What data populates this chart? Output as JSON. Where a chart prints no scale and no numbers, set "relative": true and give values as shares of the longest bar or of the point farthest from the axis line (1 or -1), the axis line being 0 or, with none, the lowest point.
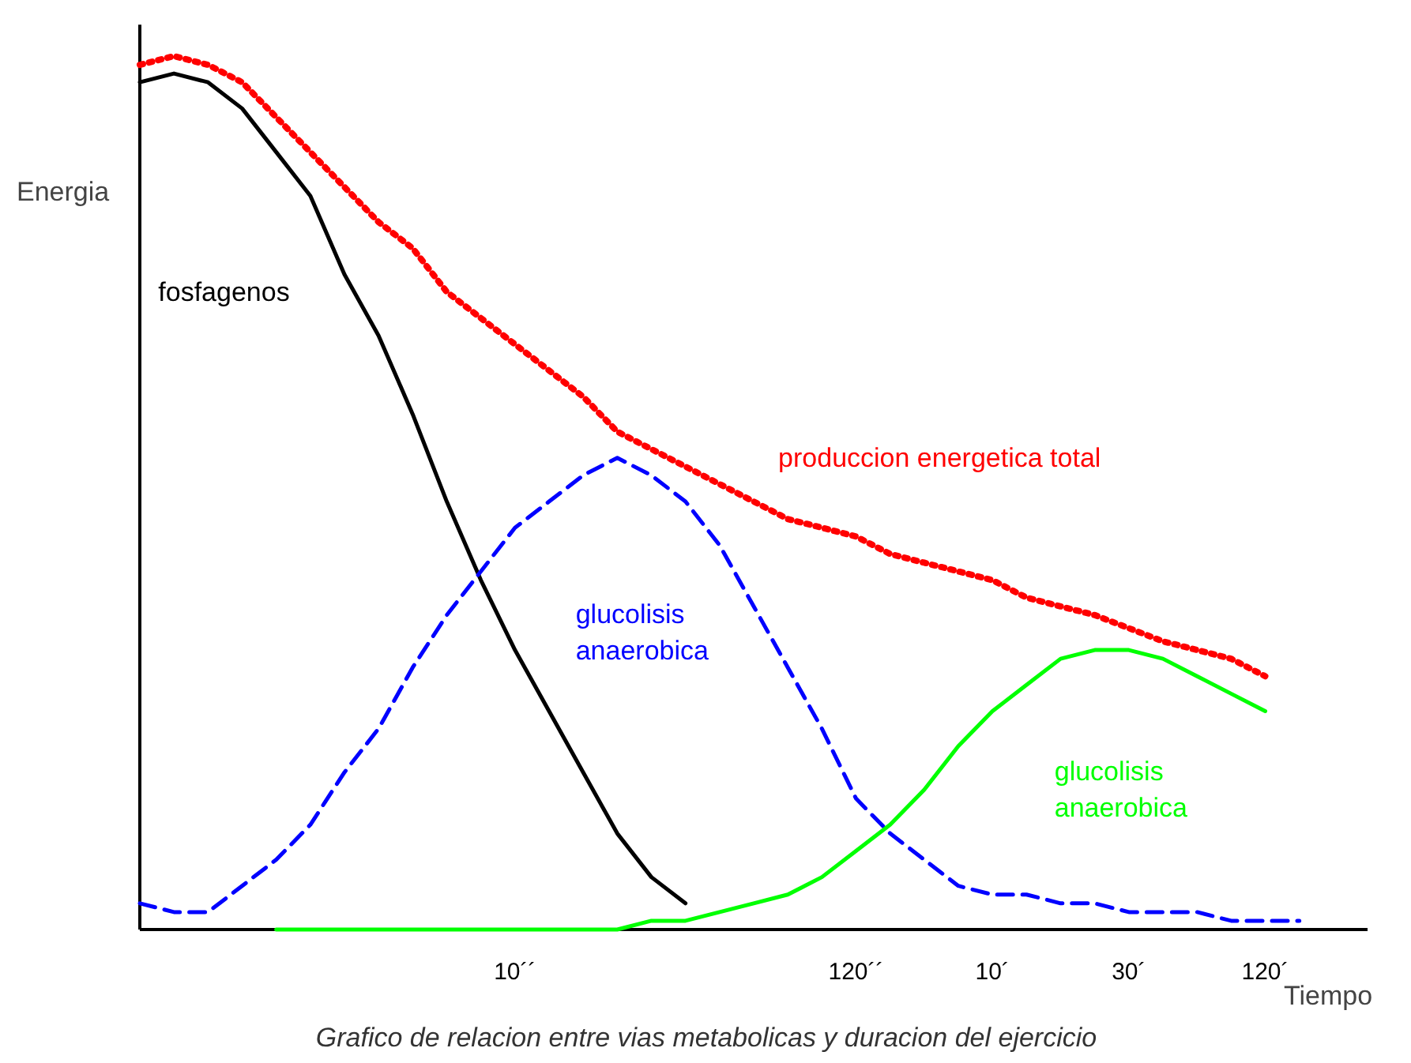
{
  "chart_data": {
    "type": "line",
    "relative": true,
    "xlabel": "Tiempo",
    "ylabel": "Energia",
    "categories": [
      null,
      null,
      null,
      null,
      null,
      null,
      null,
      null,
      null,
      null,
      null,
      "10´´",
      null,
      null,
      null,
      null,
      null,
      null,
      null,
      null,
      null,
      "120´´",
      null,
      null,
      null,
      "10´",
      null,
      null,
      null,
      "30´",
      null,
      null,
      null,
      "120´",
      null,
      null,
      null
    ],
    "annotations": [
      "Grafico de relacion entre vias metabolicas y duracion del ejercicio"
    ],
    "series": [
      {
        "name": "produccion energetica total",
        "color": "#ff0000",
        "line_style": "dotted",
        "values": [
          0.99,
          1.0,
          0.99,
          0.97,
          0.93,
          0.89,
          0.85,
          0.81,
          0.78,
          0.73,
          0.7,
          0.67,
          0.64,
          0.61,
          0.57,
          0.55,
          0.53,
          0.51,
          0.49,
          0.47,
          0.46,
          0.45,
          0.43,
          0.42,
          0.41,
          0.4,
          0.38,
          0.37,
          0.36,
          0.345,
          0.33,
          0.32,
          0.31,
          0.29,
          null,
          null,
          null
        ]
      },
      {
        "name": "fosfagenos",
        "color": "#000000",
        "line_style": "solid",
        "values": [
          0.97,
          0.98,
          0.97,
          0.94,
          0.89,
          0.84,
          0.75,
          0.68,
          0.59,
          0.49,
          0.4,
          0.32,
          0.25,
          0.18,
          0.11,
          0.06,
          0.03,
          null,
          null,
          null,
          null,
          null,
          null,
          null,
          null,
          null,
          null,
          null,
          null,
          null,
          null,
          null,
          null,
          null,
          null,
          null,
          null
        ]
      },
      {
        "name": "glucolisis\nanaerobica",
        "color": "#0000ff",
        "line_style": "dashed",
        "values": [
          0.03,
          0.02,
          0.02,
          0.05,
          0.08,
          0.12,
          0.18,
          0.23,
          0.3,
          0.36,
          0.41,
          0.46,
          0.49,
          0.52,
          0.54,
          0.52,
          0.49,
          0.44,
          0.37,
          0.3,
          0.23,
          0.15,
          0.11,
          0.08,
          0.05,
          0.04,
          0.04,
          0.03,
          0.03,
          0.02,
          0.02,
          0.02,
          0.01,
          0.01,
          0.01,
          null,
          null
        ]
      },
      {
        "name": "glucolisis\nanaerobica",
        "color": "#00ff00",
        "line_style": "solid",
        "values": [
          null,
          null,
          null,
          null,
          0,
          0,
          0,
          0,
          0,
          0,
          0,
          0,
          0,
          0,
          0,
          0.01,
          0.01,
          0.02,
          0.03,
          0.04,
          0.06,
          0.09,
          0.12,
          0.16,
          0.21,
          0.25,
          0.28,
          0.31,
          0.32,
          0.32,
          0.31,
          0.29,
          0.27,
          0.25,
          null,
          null,
          null
        ]
      }
    ]
  }
}
